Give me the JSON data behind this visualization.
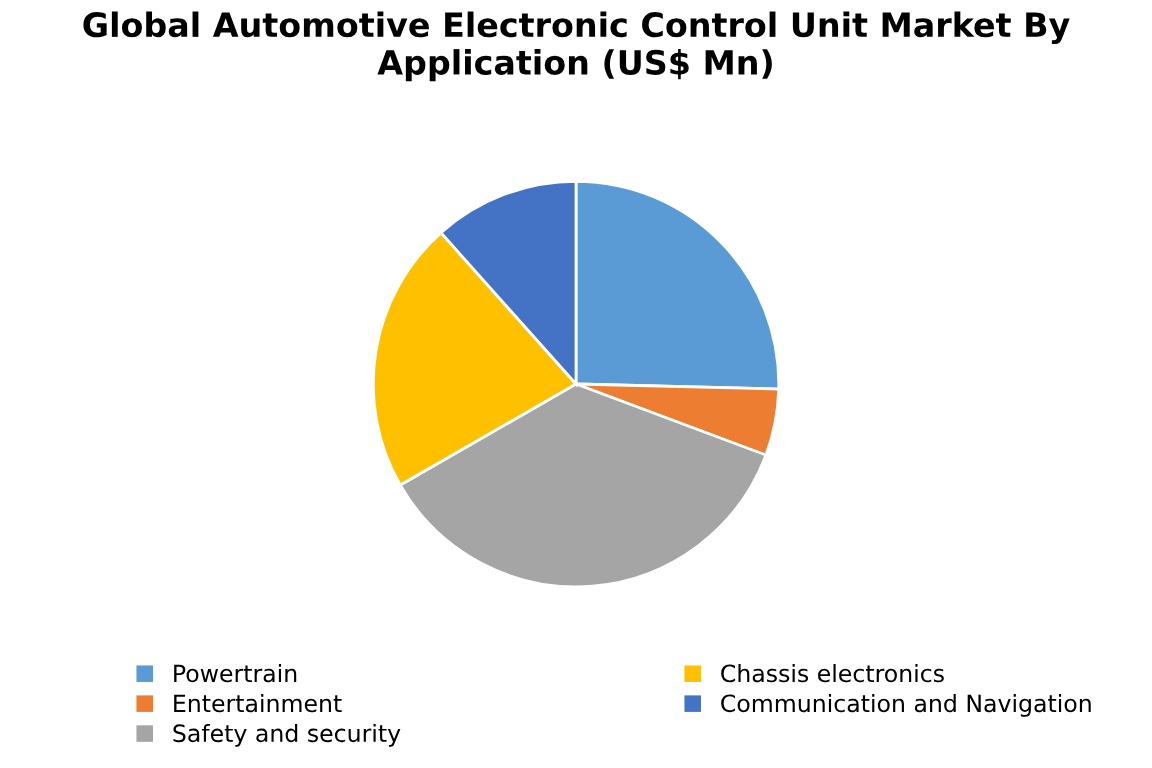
{
  "chart_data": {
    "type": "pie",
    "title": "Global Automotive Electronic Control Unit Market By Application (US$ Mn)",
    "categories": [
      "Powertrain",
      "Entertainment",
      "Safety and security",
      "Chassis electronics",
      "Communication and Navigation"
    ],
    "values": [
      25.4,
      5.3,
      36,
      21.7,
      11.6
    ],
    "colors": [
      "#5b9bd5",
      "#ed7d31",
      "#a5a5a5",
      "#ffc000",
      "#4472c4"
    ],
    "legend": "bottom"
  }
}
